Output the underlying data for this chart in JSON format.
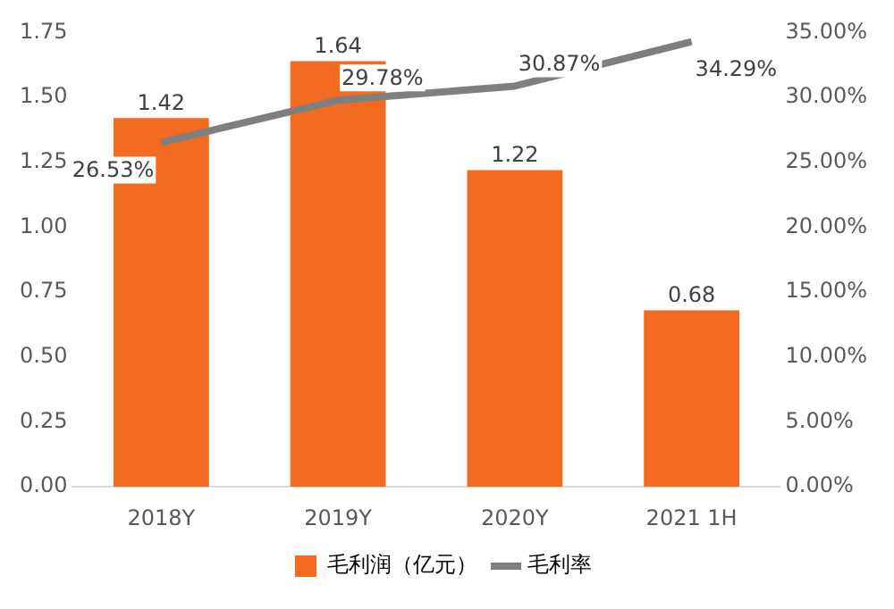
{
  "chart_data": {
    "type": "bar",
    "categories": [
      "2018Y",
      "2019Y",
      "2020Y",
      "2021 1H"
    ],
    "series": [
      {
        "name": "毛利润（亿元）",
        "color": "#f26b21",
        "values": [
          1.42,
          1.64,
          1.22,
          0.68
        ],
        "value_labels": [
          "1.42",
          "1.64",
          "1.22",
          "0.68"
        ]
      },
      {
        "name": "毛利率",
        "type": "line",
        "axis": "y2",
        "color": "#7f7f7f",
        "values": [
          26.53,
          29.78,
          30.87,
          34.29
        ],
        "value_labels": [
          "26.53%",
          "29.78%",
          "30.87%",
          "34.29%"
        ]
      }
    ],
    "ylim": [
      0,
      1.75
    ],
    "yticks": [
      {
        "value": 0,
        "label": "0.00"
      },
      {
        "value": 0.25,
        "label": "0.25"
      },
      {
        "value": 0.5,
        "label": "0.50"
      },
      {
        "value": 0.75,
        "label": "0.75"
      },
      {
        "value": 1,
        "label": "1.00"
      },
      {
        "value": 1.25,
        "label": "1.25"
      },
      {
        "value": 1.5,
        "label": "1.50"
      },
      {
        "value": 1.75,
        "label": "1.75"
      }
    ],
    "y2lim": [
      0,
      35
    ],
    "y2ticks": [
      {
        "value": 0,
        "label": "0.00%"
      },
      {
        "value": 5,
        "label": "5.00%"
      },
      {
        "value": 10,
        "label": "10.00%"
      },
      {
        "value": 15,
        "label": "15.00%"
      },
      {
        "value": 20,
        "label": "20.00%"
      },
      {
        "value": 25,
        "label": "25.00%"
      },
      {
        "value": 30,
        "label": "30.00%"
      },
      {
        "value": 35,
        "label": "35.00%"
      }
    ],
    "legend": "bottom",
    "grid": false,
    "marker": "none"
  }
}
